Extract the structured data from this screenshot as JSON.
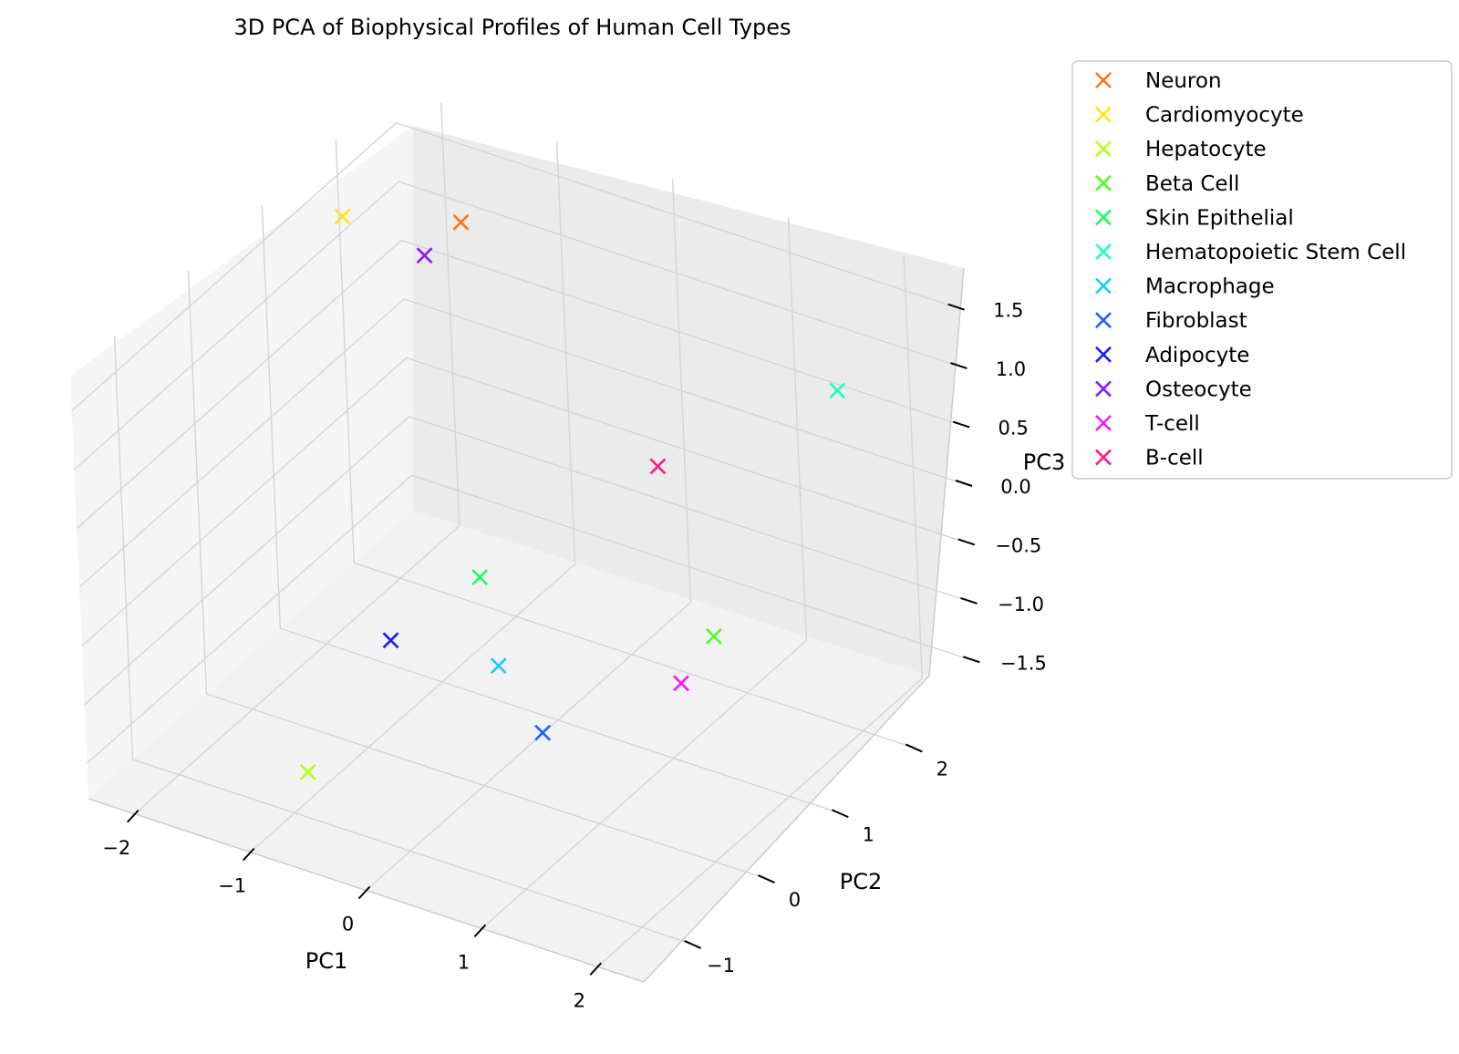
{
  "chart_data": {
    "type": "scatter",
    "projection": "3d",
    "title": "3D PCA of Biophysical Profiles of Human Cell Types",
    "xlabel": "PC1",
    "ylabel": "PC2",
    "zlabel": "PC3",
    "xlim": [
      -2.4,
      2.4
    ],
    "ylim": [
      -1.6,
      2.8
    ],
    "zlim": [
      -1.8,
      1.8
    ],
    "xticks": [
      "−2",
      "−1",
      "0",
      "1",
      "2"
    ],
    "yticks": [
      "−1",
      "0",
      "1",
      "2"
    ],
    "zticks": [
      "1.5",
      "1.0",
      "0.5",
      "0.0",
      "−0.5",
      "−1.0",
      "−1.5"
    ],
    "grid": true,
    "legend_position": "top-right outside plot",
    "marker": "x",
    "series": [
      {
        "name": "Neuron",
        "color": "#ff7518",
        "x": -1.2,
        "y": 1.8,
        "z": 1.6
      },
      {
        "name": "Cardiomyocyte",
        "color": "#ffe31a",
        "x": -1.9,
        "y": 1.3,
        "z": 1.7
      },
      {
        "name": "Hepatocyte",
        "color": "#b3ff1a",
        "x": -0.6,
        "y": -1.4,
        "z": -1.1
      },
      {
        "name": "Beta Cell",
        "color": "#4cff1a",
        "x": 1.6,
        "y": 0.7,
        "z": -0.4
      },
      {
        "name": "Skin Epithelial",
        "color": "#1aff5e",
        "x": -0.9,
        "y": 1.4,
        "z": -1.1
      },
      {
        "name": "Hematopoietic Stem Cell",
        "color": "#1affc6",
        "x": 1.5,
        "y": 2.6,
        "z": 0.6
      },
      {
        "name": "Macrophage",
        "color": "#1acaff",
        "x": -0.5,
        "y": 1.0,
        "z": -1.5
      },
      {
        "name": "Fibroblast",
        "color": "#1a62ff",
        "x": 0.6,
        "y": -0.1,
        "z": -1.1
      },
      {
        "name": "Adipocyte",
        "color": "#1a1aff",
        "x": -1.1,
        "y": 0.5,
        "z": -1.2
      },
      {
        "name": "Osteocyte",
        "color": "#8a1aff",
        "x": -1.8,
        "y": 2.2,
        "z": 0.9
      },
      {
        "name": "T-cell",
        "color": "#f21aff",
        "x": 1.9,
        "y": -0.2,
        "z": -0.2
      },
      {
        "name": "B-cell",
        "color": "#ff1a8c",
        "x": 0.3,
        "y": 2.0,
        "z": -0.1
      }
    ]
  }
}
